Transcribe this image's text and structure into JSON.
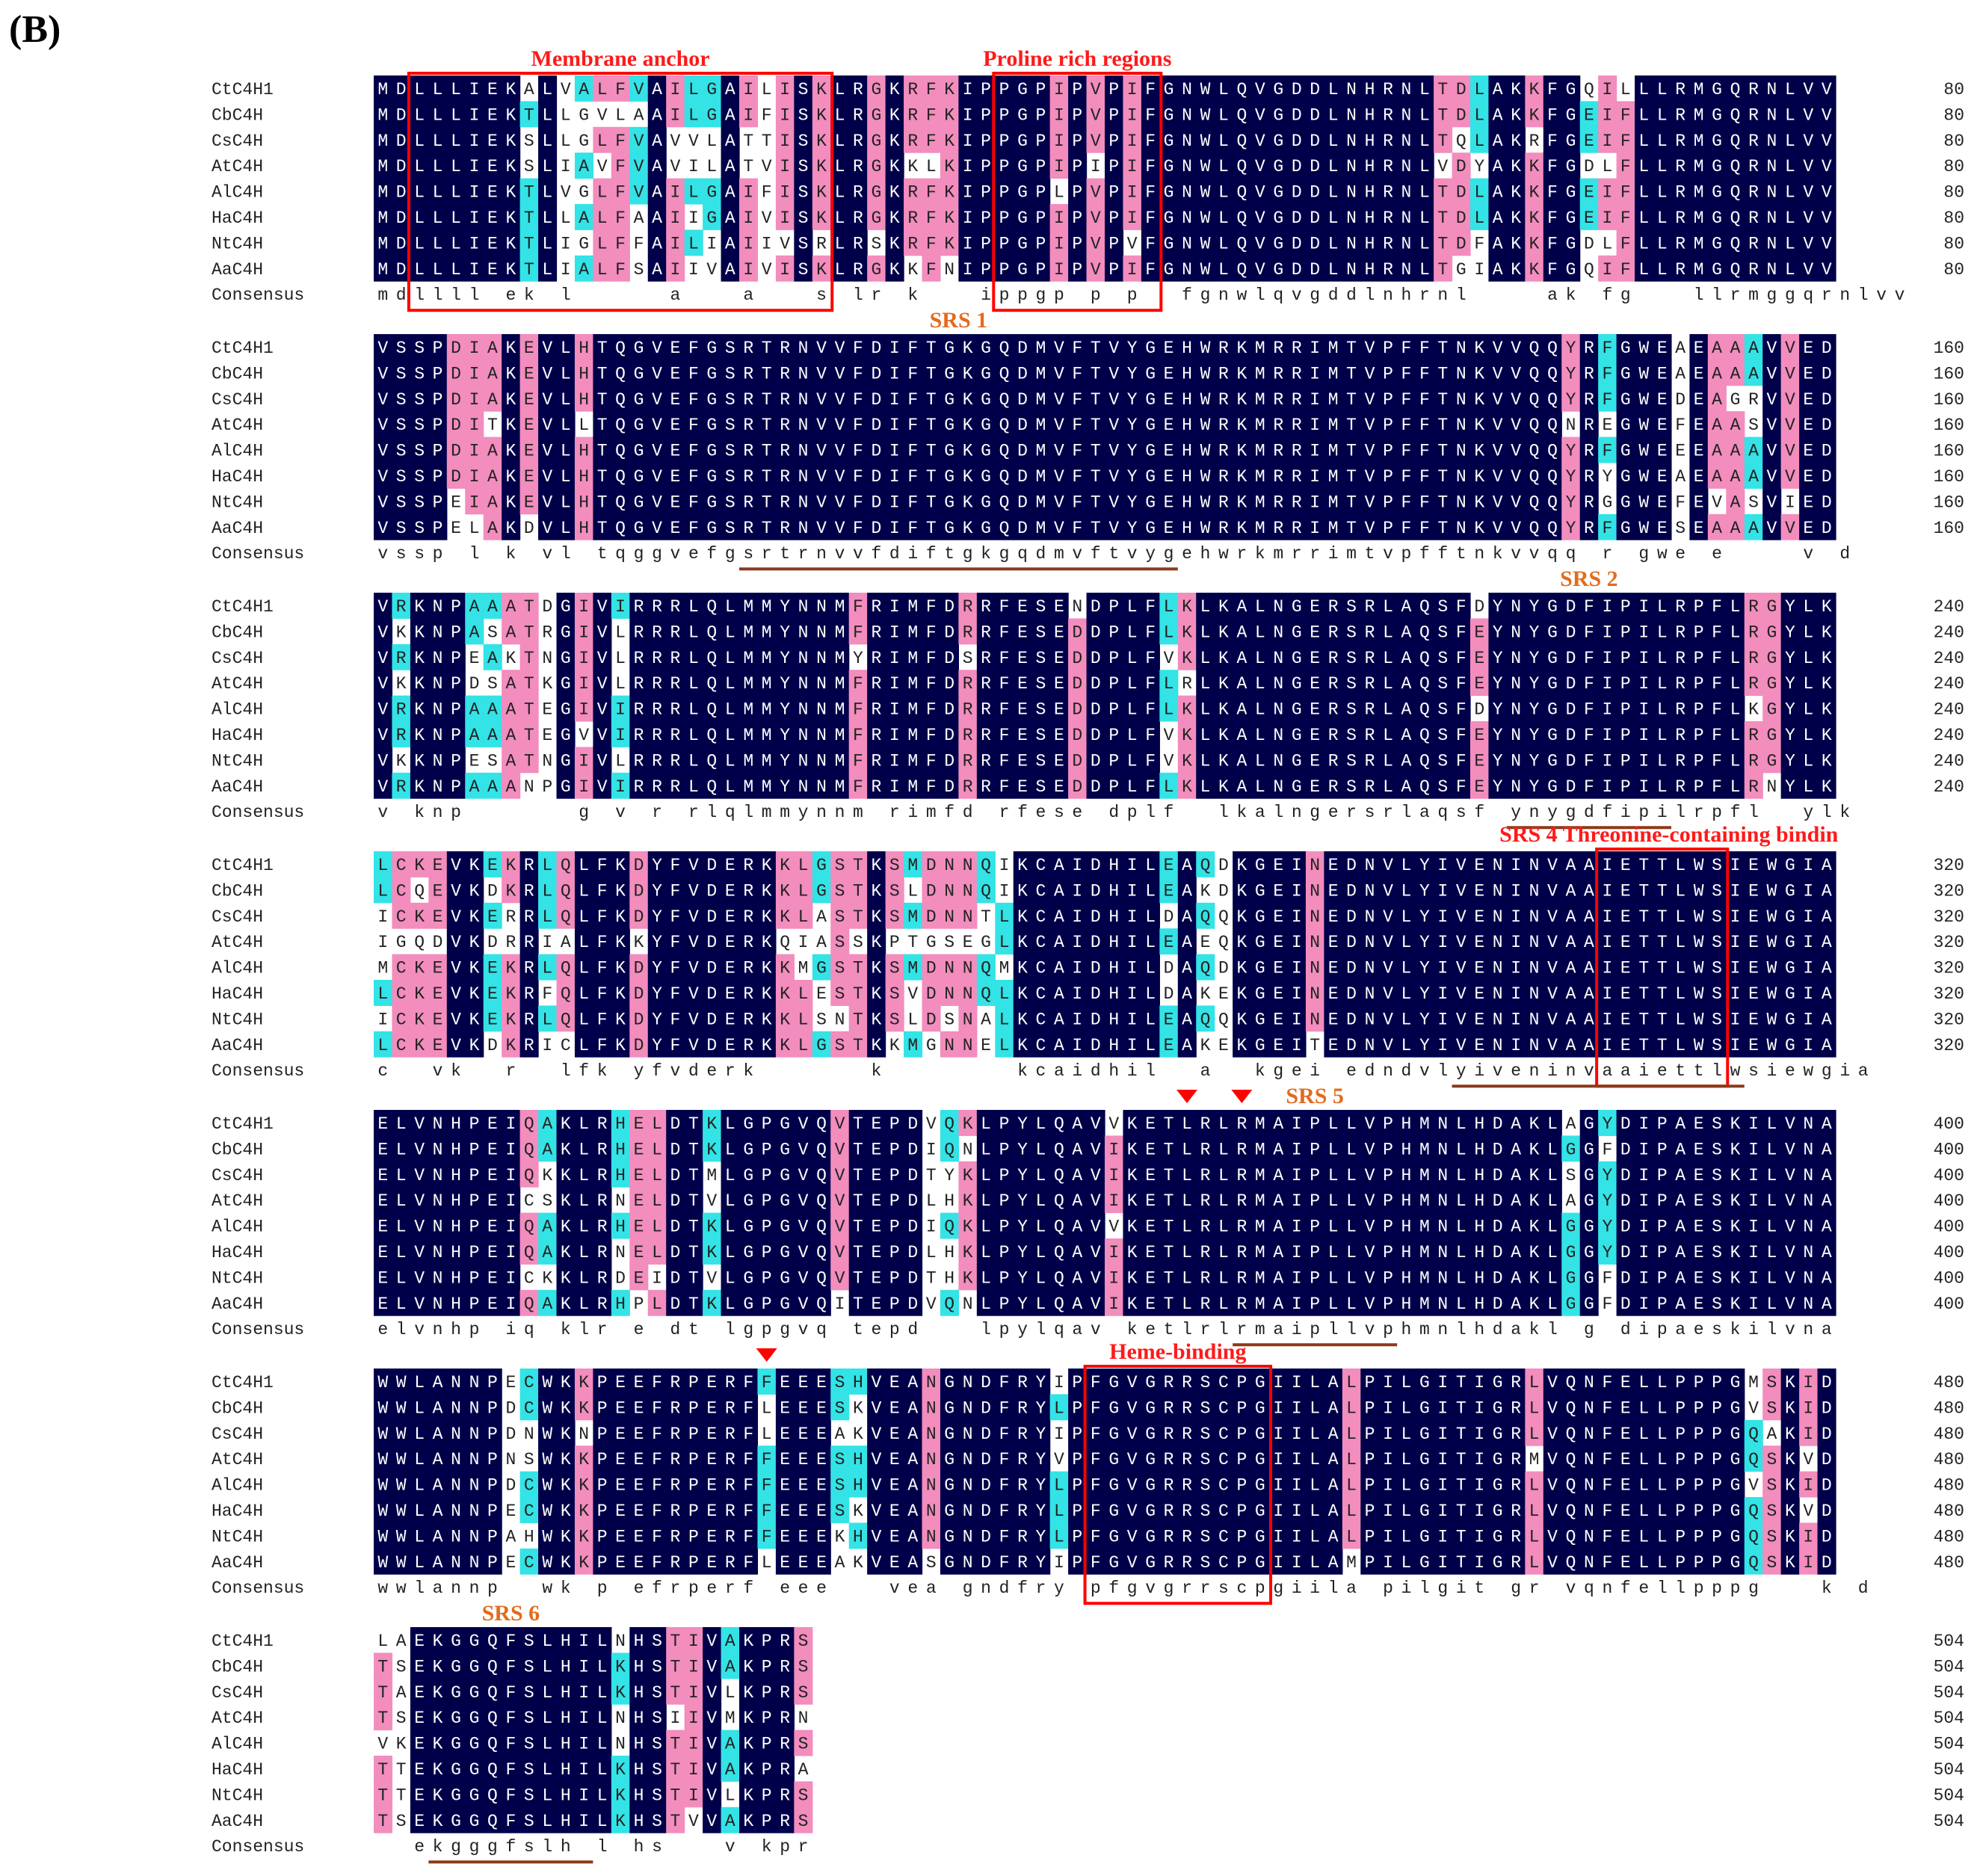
{
  "panel_label": "(B)",
  "colors": {
    "identical": "#00004a",
    "high": "#f28dbd",
    "medium": "#33e3e6",
    "box": "#ff0000",
    "region_label": "#ff1a1a",
    "srs_label": "#e36b1e",
    "underline": "#8b3a1a",
    "text_dark": "#222222",
    "text_light": "#ffffff"
  },
  "species": [
    "CtC4H1",
    "CbC4H",
    "CsC4H",
    "AtC4H",
    "AlC4H",
    "HaC4H",
    "NtC4H",
    "AaC4H"
  ],
  "blocks": [
    {
      "end": 80,
      "rows": [
        "MDLLLIEKALVALFVAILGAILISKLRGKRFKIPPGPIPVPIFGNWLQVGDDLNHRNLTDLAKKFGQILLLRMGQRNLVV",
        "MDLLLIEKTLLGVLAAILGAIFISKLRGKRFKIPPGPIPVPIFGNWLQVGDDLNHRNLTDLAKKFGEIFLLRMGQRNLVV",
        "MDLLLIEKSLLGLFVAVVLATTISKLRGKRFKIPPGPIPVPIFGNWLQVGDDLNHRNLTQLAKRFGEIFLLRMGQRNLVV",
        "MDLLLIEKSLIAVFVAVILATVISKLRGKKLKIPPGPIPIPIFGNWLQVGDDLNHRNLVDYAKKFGDLFLLRMGQRNLVV",
        "MDLLLIEKTLVGLFVAILGAIFISKLRGKRFKIPPGPLPVPIFGNWLQVGDDLNHRNLTDLAKKFGEIFLLRMGQRNLVV",
        "MDLLLIEKTLLALFAAIIGAIVISKLRGKRFKIPPGPIPVPIFGNWLQVGDDLNHRNLTDLAKKFGEIFLLRMGQRNLVV",
        "MDLLLIEKTLIGLFFAILIAIIVSRLRSKRFKIPPGPIPVPVFGNWLQVGDDLNHRNLTDFAKKFGDLFLLRMGQRNLVV",
        "MDLLLIEKTLIALFSAIIVAIVISKLRGKKFNIPPGPIPVPIFGNWLQVGDDLNHRNLTGIAKKFGQIFLLRMGQRNLVV"
      ],
      "consensus": "mdllll ek l     a   a   s lr k   ippgp p p  fgnwlqvgddlnhrnl    ak fg   llrmggqrnlvv"
    },
    {
      "end": 160,
      "rows": [
        "VSSPDIAKEVLHTQGVEFGSRTRNVVFDIFTGKGQDMVFTVYGEHWRKMRRIMTVPFFTNKVVQQYRFGWEAEAAAVVED",
        "VSSPDIAKEVLHTQGVEFGSRTRNVVFDIFTGKGQDMVFTVYGEHWRKMRRIMTVPFFTNKVVQQYRFGWEAEAAAVVED",
        "VSSPDIAKEVLHTQGVEFGSRTRNVVFDIFTGKGQDMVFTVYGEHWRKMRRIMTVPFFTNKVVQQYRFGWEDEAGRVVED",
        "VSSPDITKEVLLTQGVEFGSRTRNVVFDIFTGKGQDMVFTVYGEHWRKMRRIMTVPFFTNKVVQQNREGWEFEAASVVED",
        "VSSPDIAKEVLHTQGVEFGSRTRNVVFDIFTGKGQDMVFTVYGEHWRKMRRIMTVPFFTNKVVQQYRFGWEEEAAAVVED",
        "VSSPDIAKEVLHTQGVEFGSRTRNVVFDIFTGKGQDMVFTVYGEHWRKMRRIMTVPFFTNKVVQQYRYGWEAEAAAVVED",
        "VSSPEIAKEVLHTQGVEFGSRTRNVVFDIFTGKGQDMVFTVYGEHWRKMRRIMTVPFFTNKVVQQYRGGWEFEVASVIED",
        "VSSPELAKDVLHTQGVEFGSRTRNVVFDIFTGKGQDMVFTVYGEHWRKMRRIMTVPFFTNKVVQQYRFGWESEAAAVVED"
      ],
      "consensus": "vssp l k vl tqggvefgsrtrnvvfdiftgkgqdmvftvygehwrkmrrimtvpfftnkvvqq r gwe e    v d"
    },
    {
      "end": 240,
      "rows": [
        "VRKNPAAATDGIVIRRRLQLMMYNNMFRIMFDRRFESENDPLFLKLKALNGERSRLAQSFDYNYGDFIPILRPFLRGYLK",
        "VKKNPASATRGIVLRRRLQLMMYNNMFRIMFDRRFESEDDPLFLKLKALNGERSRLAQSFEYNYGDFIPILRPFLRGYLK",
        "VRKNPEAKTNGIVLRRRLQLMMYNNMYRIMFDSRFESEDDPLFVKLKALNGERSRLAQSFEYNYGDFIPILRPFLRGYLK",
        "VKKNPDSATKGIVLRRRLQLMMYNNMFRIMFDRRFESEDDPLFLRLKALNGERSRLAQSFEYNYGDFIPILRPFLRGYLK",
        "VRKNPAAATEGIVIRRRLQLMMYNNMFRIMFDRRFESEDDPLFLKLKALNGERSRLAQSFDYNYGDFIPILRPFLKGYLK",
        "VRKNPAAATEGVVIRRRLQLMMYNNMFRIMFDRRFESEDDPLFVKLKALNGERSRLAQSFEYNYGDFIPILRPFLRGYLK",
        "VKKNPESATNGIVLRRRLQLMMYNNMFRIMFDRRFESEDDPLFVKLKALNGERSRLAQSFEYNYGDFIPILRPFLRGYLK",
        "VRKNPAAANPGIVIRRRLQLMMYNNMFRIMFDRRFESEDDPLFLKLKALNGERSRLAQSFEYNYGDFIPILRPFLRNYLK"
      ],
      "consensus": "v knp      g v r rlqlmmynnm rimfd rfese dplf  lkalngersrlaqsf ynygdfipilrpfl  ylk"
    },
    {
      "end": 320,
      "rows": [
        "LCKEVKEKRLQLFKDYFVDERKKLGSTKSMDNNQIKCAIDHILEAQDKGEINEDNVLYIVENINVAAIETTLWSIEWGIA",
        "LCQEVKDKRLQLFKDYFVDERKKLGSTKSLDNNQIKCAIDHILEAKDKGEINEDNVLYIVENINVAAIETTLWSIEWGIA",
        "ICKEVKERRLQLFKDYFVDERKKLASTKSMDNNTLKCAIDHILDAQQKGEINEDNVLYIVENINVAAIETTLWSIEWGIA",
        "IGQDVKDRRIALFKKYFVDERKQIASSKPTGSEGLKCAIDHILEAEQKGEINEDNVLYIVENINVAAIETTLWSIEWGIA",
        "MCKEVKEKRLQLFKDYFVDERKKMGSTKSMDNNQMKCAIDHILDAQDKGEINEDNVLYIVENINVAAIETTLWSIEWGIA",
        "LCKEVKEKRFQLFKDYFVDERKKLESTKSVDNNQLKCAIDHILDAKEKGEINEDNVLYIVENINVAAIETTLWSIEWGIA",
        "ICKEVKEKRLQLFKDYFVDERKKLSNTKSLDSNALKCAIDHILEAQQKGEINEDNVLYIVENINVAAIETTLWSIEWGIA",
        "LCKEVKDKRICLFKDYFVDERKKLGSTKKMGNNELKCAIDHILEAKEKGEITEDNVLYIVENINVAAIETTLWSIEWGIA"
      ],
      "consensus": "c  vk  r  lfk yfvderk      k       kcaidhil  a  kgei edndvlyiveninvaaiettlwsiewgia"
    },
    {
      "end": 400,
      "rows": [
        "ELVNHPEIQAKLRHELDTKLGPGVQVTEPDVQKLPYLQAVVKETLRLRMAIPLLVPHMNLHDAKLAGYDIPAESKILVNA",
        "ELVNHPEIQAKLRHELDTKLGPGVQVTEPDIQNLPYLQAVIKETLRLRMAIPLLVPHMNLHDAKLGGFDIPAESKILVNA",
        "ELVNHPEIQKKLRHELDTMLGPGVQVTEPDTYKLPYLQAVIKETLRLRMAIPLLVPHMNLHDAKLSGYDIPAESKILVNA",
        "ELVNHPEICSKLRNELDTVLGPGVQVTEPDLHKLPYLQAVIKETLRLRMAIPLLVPHMNLHDAKLAGYDIPAESKILVNA",
        "ELVNHPEIQAKLRHELDTKLGPGVQVTEPDIQKLPYLQAVVKETLRLRMAIPLLVPHMNLHDAKLGGYDIPAESKILVNA",
        "ELVNHPEIQAKLRNELDTKLGPGVQVTEPDLHKLPYLQAVIKETLRLRMAIPLLVPHMNLHDAKLGGYDIPAESKILVNA",
        "ELVNHPEICKKLRDEIDTVLGPGVQVTEPDTHKLPYLQAVIKETLRLRMAIPLLVPHMNLHDAKLGGFDIPAESKILVNA",
        "ELVNHPEIQAKLRHPLDTKLGPGVQITEPDVQNLPYLQAVIKETLRLRMAIPLLVPHMNLHDAKLGGFDIPAESKILVNA"
      ],
      "consensus": "elvnhp iq klr e dt lgpgvq tepd   lpylqav ketlrlrmaipllvphmnlhdakl g dipaeskilvna"
    },
    {
      "end": 480,
      "rows": [
        "WWLANNPECWKKPEEFRPERFFEEESHVEANGNDFRYIPFGVGRRSCPGIILALPILGITIGRLVQNFELLPPPGMSKID",
        "WWLANNPDCWKKPEEFRPERFLEEESKVEANGNDFRYLPFGVGRRSCPGIILALPILGITIGRLVQNFELLPPPGVSKID",
        "WWLANNPDNWKNPEEFRPERFLEEEAKVEANGNDFRYIPFGVGRRSCPGIILALPILGITIGRLVQNFELLPPPGQAKID",
        "WWLANNPNSWKKPEEFRPERFFEEESHVEANGNDFRYVPFGVGRRSCPGIILALPILGITIGRMVQNFELLPPPGQSKVD",
        "WWLANNPDCWKKPEEFRPERFFEEESHVEANGNDFRYLPFGVGRRSCPGIILALPILGITIGRLVQNFELLPPPGVSKID",
        "WWLANNPECWKKPEEFRPERFFEEESKVEANGNDFRYLPFGVGRRSCPGIILALPILGITIGRLVQNFELLPPPGQSKVD",
        "WWLANNPAHWKKPEEFRPERFFEEEKHVEANGNDFRYLPFGVGRRSCPGIILALPILGITIGRLVQNFELLPPPGQSKID",
        "WWLANNPECWKKPEEFRPERFLEEEAKVEASGNDFRYIPFGVGRRSCPGIILAMPILGITIGRLVQNFELLPPPGQSKID"
      ],
      "consensus": "wwlannp  wk p efrperf eee   vea gndfry pfgvgrrscpgiila pilgit gr vqnfellpppg   k d"
    },
    {
      "end": 504,
      "rows": [
        "LAEKGGQFSLHILNHSTIVAKPRS",
        "TSEKGGQFSLHILKHSTIVAKPRS",
        "TAEKGGQFSLHILKHSTIVLKPRS",
        "TSEKGGQFSLHILNHSIIVMKPRN",
        "VKEKGGQFSLHILNHSTIVAKPRS",
        "TTEKGGQFSLHILKHSTIVAKPRA",
        "TTEKGGQFSLHILKHSTIVLKPRS",
        "TSEKGGQFSLHILKHSTVVAKPRS"
      ],
      "consensus": "  ekgggfslh l hs   v kpr "
    }
  ],
  "annotations": [
    {
      "type": "box",
      "label": "Membrane anchor",
      "block": 0,
      "start": 2,
      "end": 24
    },
    {
      "type": "box",
      "label": "Proline rich regions",
      "block": 0,
      "start": 34,
      "end": 42
    },
    {
      "type": "srs",
      "label": "SRS 1",
      "block": 1,
      "start": 20,
      "end": 43
    },
    {
      "type": "srs",
      "label": "SRS 2",
      "block": 2,
      "start": 62,
      "end": 70
    },
    {
      "type": "box",
      "label": "SRS 4 Threonine-containing bindin",
      "block": 3,
      "start": 67,
      "end": 73
    },
    {
      "type": "srs_underline",
      "block": 3,
      "start": 59,
      "end": 74
    },
    {
      "type": "srs",
      "label": "SRS 5",
      "block": 4,
      "start": 47,
      "end": 55
    },
    {
      "type": "triangle",
      "block": 4,
      "pos": 44
    },
    {
      "type": "triangle",
      "block": 4,
      "pos": 47
    },
    {
      "type": "box",
      "label": "Heme-binding",
      "block": 5,
      "start": 39,
      "end": 48
    },
    {
      "type": "triangle",
      "block": 5,
      "pos": 21
    },
    {
      "type": "srs",
      "label": "SRS 6",
      "block": 6,
      "start": 3,
      "end": 11
    }
  ]
}
